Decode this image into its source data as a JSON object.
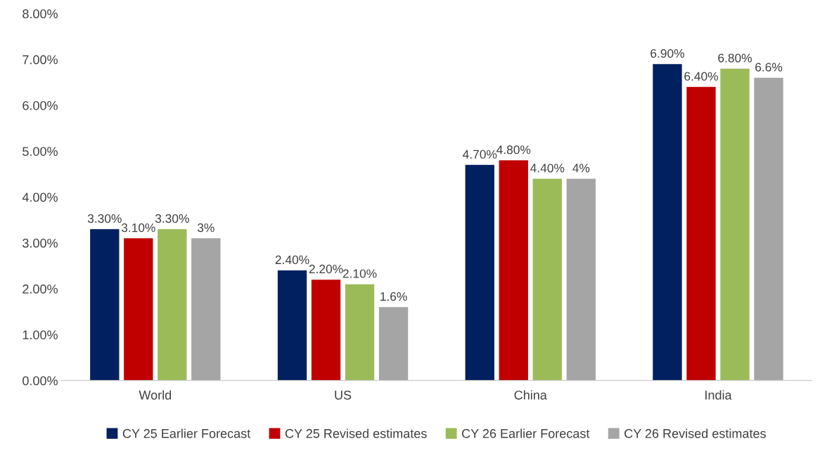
{
  "chart_data": {
    "type": "bar",
    "categories": [
      "World",
      "US",
      "China",
      "India"
    ],
    "series": [
      {
        "name": "CY 25 Earlier Forecast",
        "color": "#002060",
        "values": [
          3.3,
          2.4,
          4.7,
          6.9
        ],
        "value_labels": [
          "3.30%",
          "2.40%",
          "4.70%",
          "6.90%"
        ]
      },
      {
        "name": "CY 25 Revised estimates",
        "color": "#c00000",
        "values": [
          3.1,
          2.2,
          4.8,
          6.4
        ],
        "value_labels": [
          "3.10%",
          "2.20%",
          "4.80%",
          "6.40%"
        ]
      },
      {
        "name": "CY 26 Earlier Forecast",
        "color": "#9bbb59",
        "values": [
          3.3,
          2.1,
          4.4,
          6.8
        ],
        "value_labels": [
          "3.30%",
          "2.10%",
          "4.40%",
          "6.80%"
        ]
      },
      {
        "name": "CY 26 Revised estimates",
        "color": "#a5a5a5",
        "values": [
          3.1,
          1.6,
          4.4,
          6.6
        ],
        "value_labels": [
          "3%",
          "1.6%",
          "4%",
          "6.6%"
        ]
      }
    ],
    "ylim": [
      0,
      8
    ],
    "yticks": [
      {
        "value": 0,
        "label": "0.00%"
      },
      {
        "value": 1,
        "label": "1.00%"
      },
      {
        "value": 2,
        "label": "2.00%"
      },
      {
        "value": 3,
        "label": "3.00%"
      },
      {
        "value": 4,
        "label": "4.00%"
      },
      {
        "value": 5,
        "label": "5.00%"
      },
      {
        "value": 6,
        "label": "6.00%"
      },
      {
        "value": 7,
        "label": "7.00%"
      },
      {
        "value": 8,
        "label": "8.00%"
      }
    ],
    "grid": false,
    "legend": "bottom"
  }
}
